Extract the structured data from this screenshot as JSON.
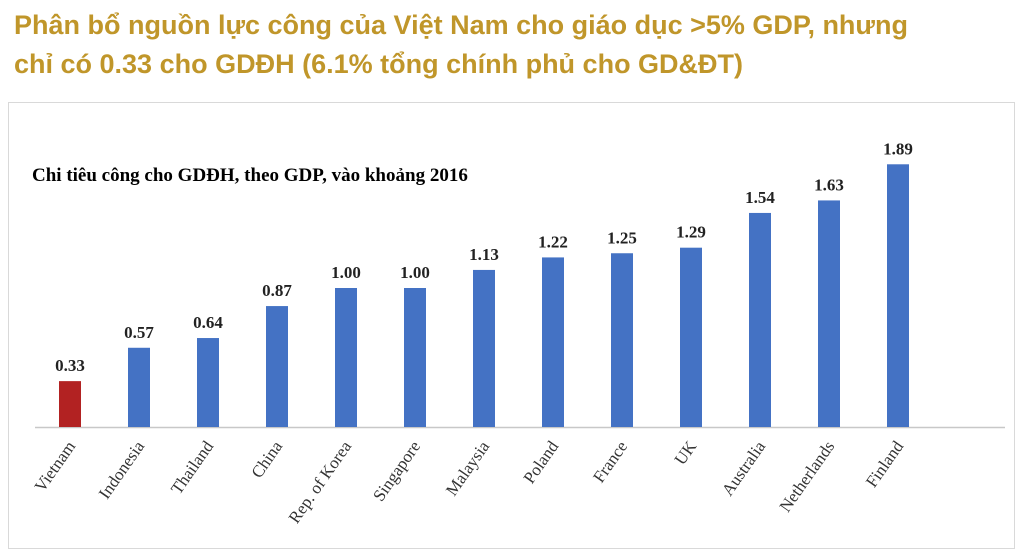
{
  "header": {
    "title_line1": "Phân bổ nguồn lực công của Việt Nam cho giáo dục >5% GDP, nhưng",
    "title_line2": "chỉ có 0.33 cho GDĐH (6.1% tổng chính phủ cho GD&ĐT)"
  },
  "chart_data": {
    "type": "bar",
    "title": "Chi tiêu công cho GDĐH, theo GDP, vào khoảng 2016",
    "xlabel": "",
    "ylabel": "",
    "categories": [
      "Vietnam",
      "Indonesia",
      "Thailand",
      "China",
      "Rep. of Korea",
      "Singapore",
      "Malaysia",
      "Poland",
      "France",
      "UK",
      "Australia",
      "Netherlands",
      "Finland"
    ],
    "values": [
      0.33,
      0.57,
      0.64,
      0.87,
      1.0,
      1.0,
      1.13,
      1.22,
      1.25,
      1.29,
      1.54,
      1.63,
      1.89
    ],
    "data_labels": [
      "0.33",
      "0.57",
      "0.64",
      "0.87",
      "1.00",
      "1.00",
      "1.13",
      "1.22",
      "1.25",
      "1.29",
      "1.54",
      "1.63",
      "1.89"
    ],
    "ylim": [
      0,
      1.89
    ],
    "grid": false,
    "legend": "none",
    "colors": {
      "highlight": "#B22222",
      "default": "#4472C4"
    }
  }
}
